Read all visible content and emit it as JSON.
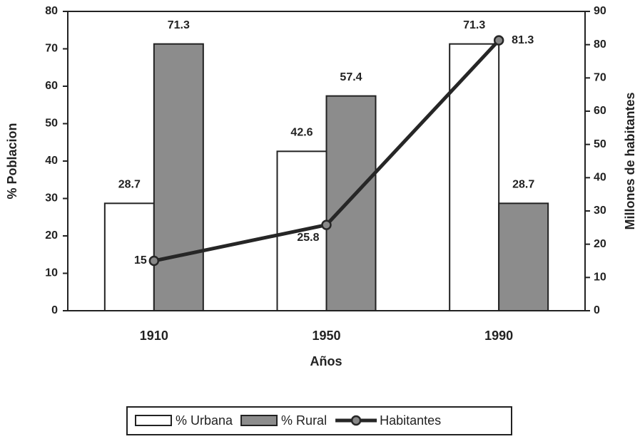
{
  "chart_data": {
    "type": "bar-line",
    "categories": [
      "1910",
      "1950",
      "1990"
    ],
    "series": [
      {
        "name": "% Urbana",
        "type": "bar",
        "color": "#ffffff",
        "values": [
          28.7,
          42.6,
          71.3
        ]
      },
      {
        "name": "% Rural",
        "type": "bar",
        "color": "#8c8c8c",
        "values": [
          71.3,
          57.4,
          28.7
        ]
      },
      {
        "name": "Habitantes",
        "type": "line",
        "axis": "y2",
        "color": "#262626",
        "values": [
          15,
          25.8,
          81.3
        ]
      }
    ],
    "xlabel": "Años",
    "ylabel": "% Poblacion",
    "y2label": "Millones de habitantes",
    "ylim": [
      0,
      80
    ],
    "yticks": [
      0,
      10,
      20,
      30,
      40,
      50,
      60,
      70,
      80
    ],
    "y2lim": [
      0,
      90
    ],
    "y2ticks": [
      0,
      10,
      20,
      30,
      40,
      50,
      60,
      70,
      80,
      90
    ],
    "legend": "bottom",
    "grid": false
  }
}
